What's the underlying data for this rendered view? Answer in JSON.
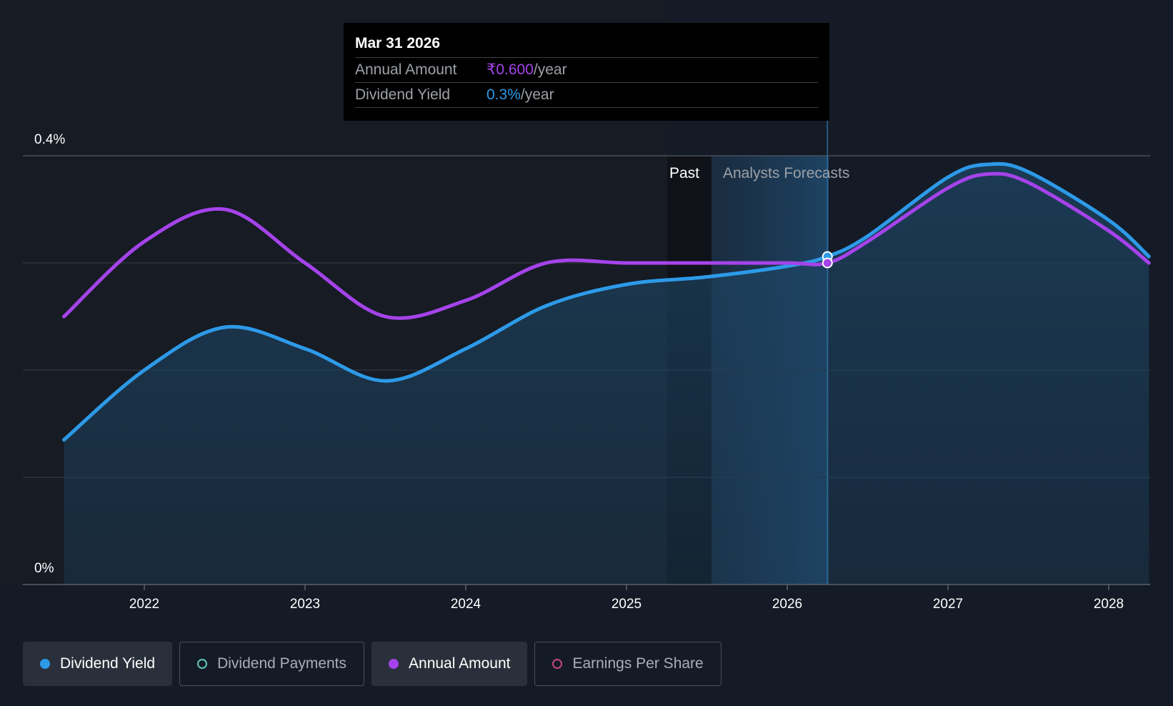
{
  "chart_data": {
    "type": "line",
    "x_ticks": [
      "2022",
      "2023",
      "2024",
      "2025",
      "2026",
      "2027",
      "2028"
    ],
    "y_ticks": [
      "0%",
      "0.4%"
    ],
    "ylim": [
      0,
      0.4
    ],
    "grid": true,
    "past_label": "Past",
    "forecast_label": "Analysts Forecasts",
    "series": [
      {
        "key": "yield",
        "color": "#2d9ae8",
        "points": [
          [
            2021.5,
            0.135
          ],
          [
            2022.0,
            0.2
          ],
          [
            2022.5,
            0.24
          ],
          [
            2023.0,
            0.22
          ],
          [
            2023.5,
            0.19
          ],
          [
            2024.0,
            0.22
          ],
          [
            2024.5,
            0.26
          ],
          [
            2025.0,
            0.28
          ],
          [
            2025.5,
            0.287
          ],
          [
            2026.0,
            0.297
          ],
          [
            2026.25,
            0.306
          ],
          [
            2026.5,
            0.325
          ],
          [
            2027.0,
            0.38
          ],
          [
            2027.25,
            0.392
          ],
          [
            2027.5,
            0.385
          ],
          [
            2028.0,
            0.34
          ],
          [
            2028.25,
            0.306
          ]
        ]
      },
      {
        "key": "annual",
        "color": "#a543ea",
        "points": [
          [
            2021.5,
            0.25
          ],
          [
            2022.0,
            0.32
          ],
          [
            2022.5,
            0.35
          ],
          [
            2023.0,
            0.3
          ],
          [
            2023.5,
            0.25
          ],
          [
            2024.0,
            0.265
          ],
          [
            2024.5,
            0.3
          ],
          [
            2025.0,
            0.3
          ],
          [
            2025.5,
            0.3
          ],
          [
            2026.0,
            0.3
          ],
          [
            2026.25,
            0.3
          ],
          [
            2026.5,
            0.32
          ],
          [
            2027.0,
            0.37
          ],
          [
            2027.25,
            0.383
          ],
          [
            2027.5,
            0.375
          ],
          [
            2028.0,
            0.33
          ],
          [
            2028.25,
            0.3
          ]
        ]
      }
    ],
    "tooltip": {
      "date": "Mar 31 2026",
      "x": 2026.25,
      "annual_label": "Annual Amount",
      "annual_value": "₹0.600",
      "annual_unit": "/year",
      "yield_label": "Dividend Yield",
      "yield_value": "0.3%",
      "yield_unit": "/year"
    }
  },
  "legend": [
    {
      "label": "Dividend Yield",
      "color": "#2d9ae8",
      "active": true,
      "filled": true
    },
    {
      "label": "Dividend Payments",
      "color": "#5fc8b8",
      "active": false,
      "filled": false
    },
    {
      "label": "Annual Amount",
      "color": "#a543ea",
      "active": true,
      "filled": true
    },
    {
      "label": "Earnings Per Share",
      "color": "#c2477a",
      "active": false,
      "filled": false
    }
  ]
}
